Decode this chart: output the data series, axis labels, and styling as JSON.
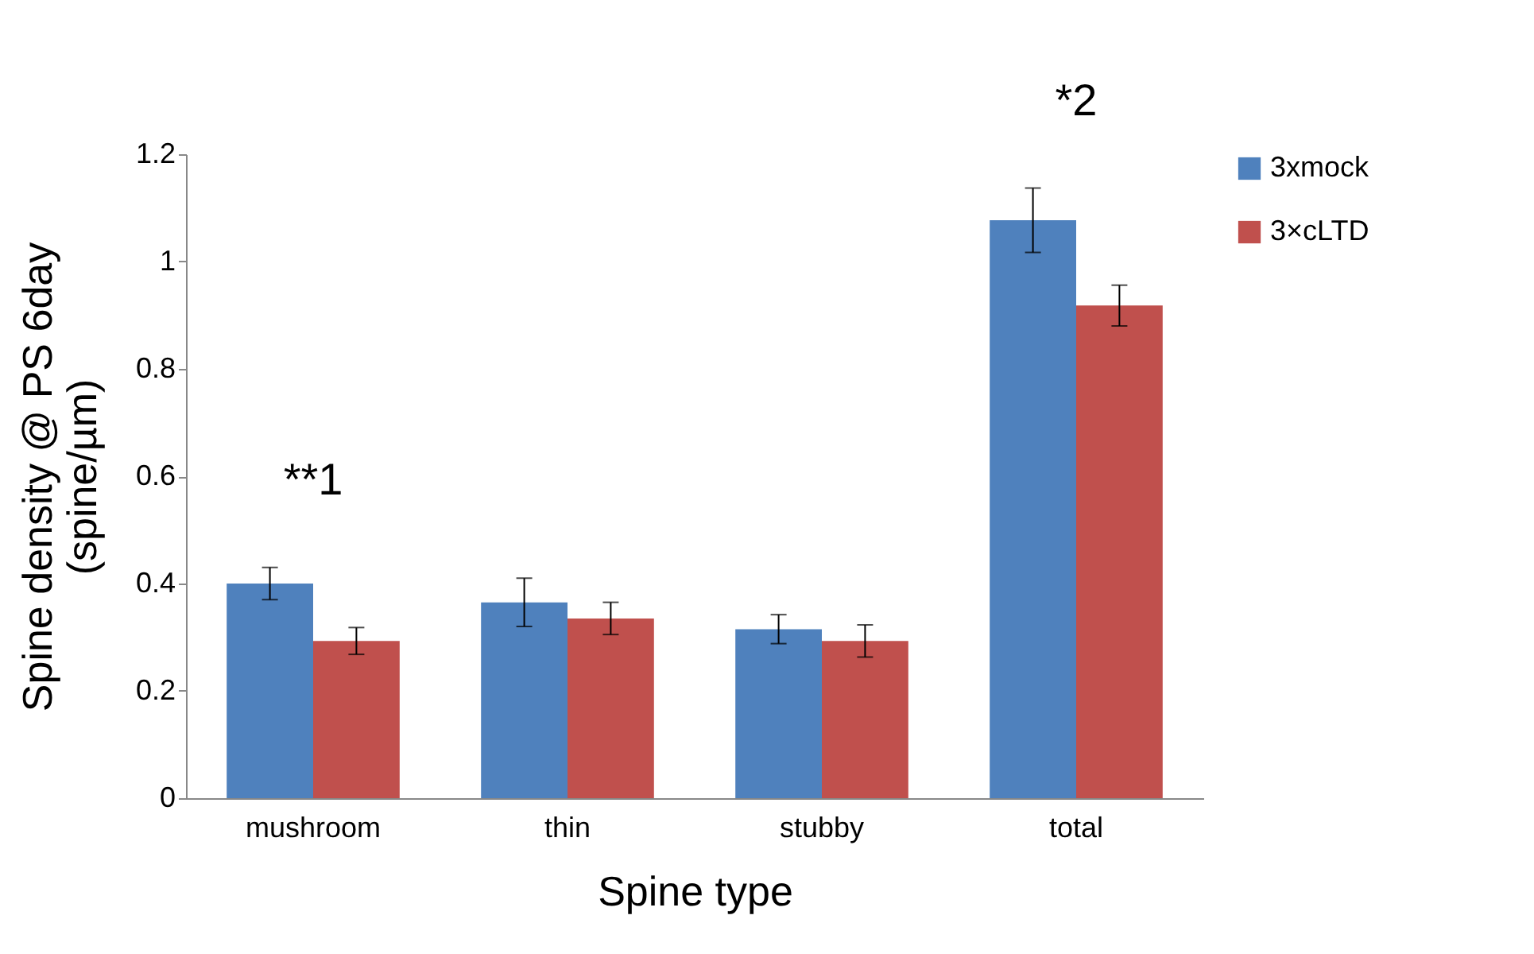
{
  "chart_data": {
    "type": "bar",
    "xlabel": "Spine type",
    "ylabel": "Spine density  @ PS 6day\n(spine/µm)",
    "categories": [
      "mushroom",
      "thin",
      "stubby",
      "total"
    ],
    "series": [
      {
        "name": "3xmock",
        "color": "#4f81bd",
        "values": [
          0.4,
          0.365,
          0.315,
          1.077
        ],
        "errors": [
          0.03,
          0.045,
          0.027,
          0.06
        ]
      },
      {
        "name": "3×cLTD",
        "color": "#c0504d",
        "values": [
          0.293,
          0.335,
          0.293,
          0.918
        ],
        "errors": [
          0.025,
          0.03,
          0.03,
          0.038
        ]
      }
    ],
    "ylim": [
      0,
      1.2
    ],
    "yticks": [
      0,
      0.2,
      0.4,
      0.6,
      0.8,
      1,
      1.2
    ],
    "grid": false,
    "legend": "right",
    "annotations": [
      "**1",
      "*2"
    ]
  }
}
